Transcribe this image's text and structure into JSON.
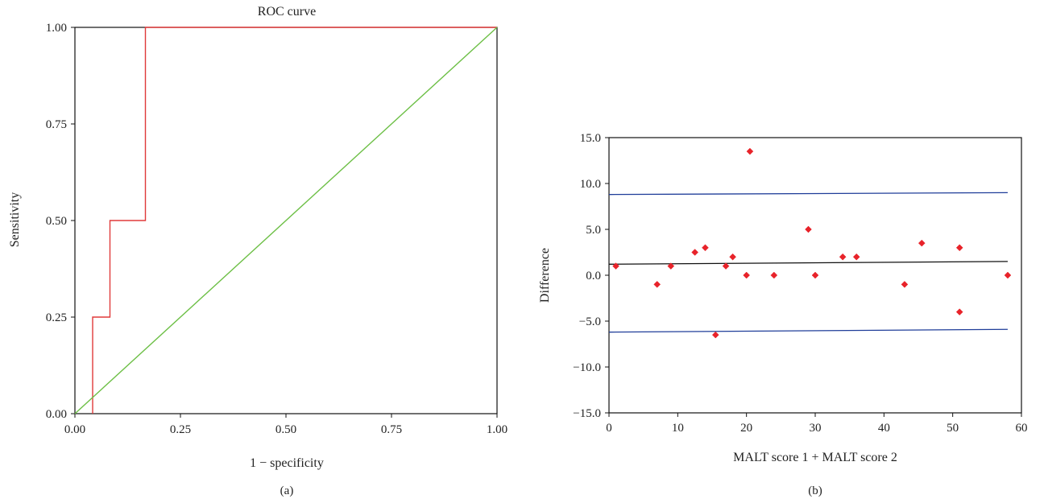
{
  "chart_data": [
    {
      "type": "line",
      "panel_label": "(a)",
      "title": "ROC curve",
      "xlabel": "1 − specificity",
      "ylabel": "Sensitivity",
      "xlim": [
        0,
        1
      ],
      "ylim": [
        0,
        1
      ],
      "xticks": [
        "0.00",
        "0.25",
        "0.50",
        "0.75",
        "1.00"
      ],
      "yticks": [
        "0.00",
        "0.25",
        "0.50",
        "0.75",
        "1.00"
      ],
      "grid": false,
      "series": [
        {
          "color": "#e03a3a",
          "x": [
            0.042,
            0.042,
            0.083,
            0.083,
            0.167,
            0.167,
            1.0
          ],
          "y": [
            0.0,
            0.25,
            0.25,
            0.5,
            0.5,
            1.0,
            1.0
          ]
        },
        {
          "color": "#6cbf45",
          "x": [
            0,
            1
          ],
          "y": [
            0,
            1
          ]
        }
      ]
    },
    {
      "type": "scatter",
      "panel_label": "(b)",
      "title": "",
      "xlabel": "MALT score 1 + MALT score 2",
      "ylabel": "Difference",
      "xlim": [
        0,
        60
      ],
      "ylim": [
        -15,
        15
      ],
      "xticks": [
        "0",
        "10",
        "20",
        "30",
        "40",
        "50",
        "60"
      ],
      "yticks": [
        "15.0",
        "10.0",
        "5.0",
        "0.0",
        "−5.0",
        "−10.0",
        "−15.0"
      ],
      "grid": false,
      "points": {
        "color": "#e8232a",
        "x": [
          1,
          7,
          9,
          12.5,
          14,
          15.5,
          17,
          18,
          20,
          20.5,
          24,
          29,
          30,
          34,
          36,
          43,
          45.5,
          51,
          51,
          58
        ],
        "y": [
          1,
          -1,
          1,
          2.5,
          3,
          -6.5,
          1,
          2,
          0,
          13.5,
          0,
          5,
          0,
          2,
          2,
          -1,
          3.5,
          3,
          -4,
          0
        ]
      },
      "lines": [
        {
          "color": "#1f3d99",
          "x": [
            0,
            58
          ],
          "y": [
            8.8,
            9.0
          ]
        },
        {
          "color": "#111111",
          "x": [
            0,
            58
          ],
          "y": [
            1.2,
            1.5
          ]
        },
        {
          "color": "#1f3d99",
          "x": [
            0,
            58
          ],
          "y": [
            -6.2,
            -5.9
          ]
        }
      ]
    }
  ]
}
